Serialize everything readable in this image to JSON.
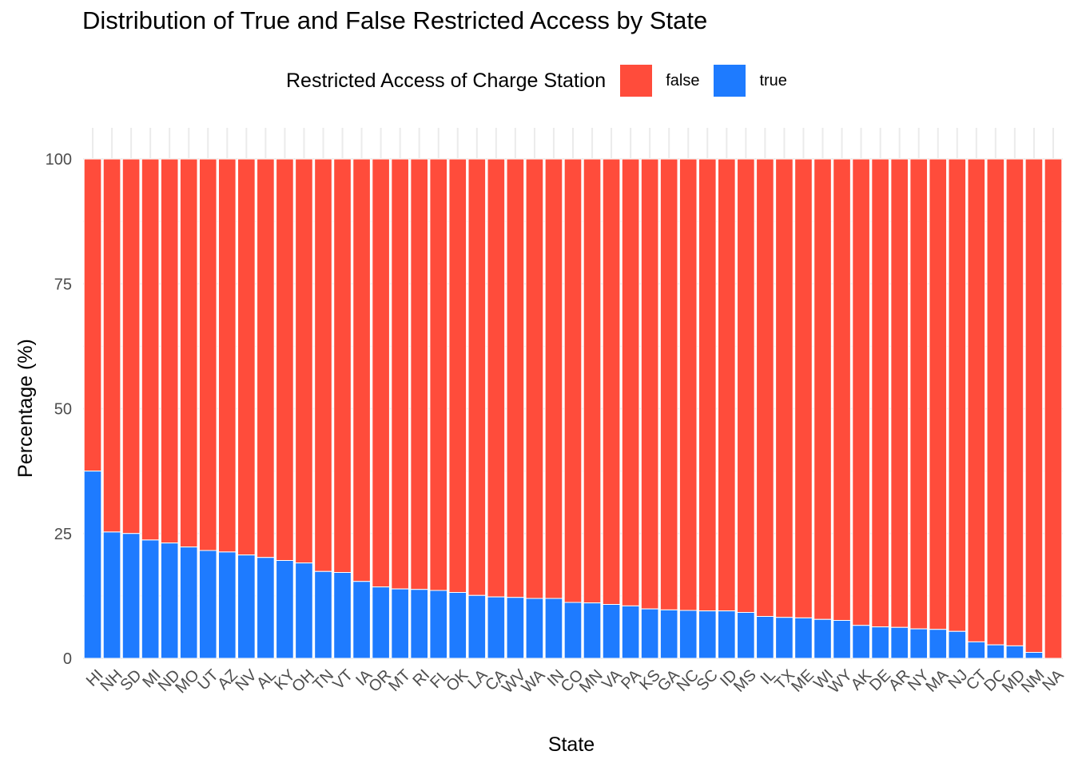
{
  "chart_data": {
    "type": "bar",
    "stacked": true,
    "title": "Distribution of True and False Restricted Access by State",
    "xlabel": "State",
    "ylabel": "Percentage (%)",
    "ylim": [
      0,
      100
    ],
    "yticks": [
      0,
      25,
      50,
      75,
      100
    ],
    "grid": true,
    "legend": {
      "title": "Restricted Access of Charge Station",
      "position": "top",
      "entries": [
        {
          "label": "false",
          "color": "#FF4C3B"
        },
        {
          "label": "true",
          "color": "#1E7BFF"
        }
      ]
    },
    "categories": [
      "HI",
      "NH",
      "SD",
      "MI",
      "ND",
      "MO",
      "UT",
      "AZ",
      "NV",
      "AL",
      "KY",
      "OH",
      "TN",
      "VT",
      "IA",
      "OR",
      "MT",
      "RI",
      "FL",
      "OK",
      "LA",
      "CA",
      "WV",
      "WA",
      "IN",
      "CO",
      "MN",
      "VA",
      "PA",
      "KS",
      "GA",
      "NC",
      "SC",
      "ID",
      "MS",
      "IL",
      "TX",
      "ME",
      "WI",
      "WY",
      "AK",
      "DE",
      "AR",
      "NY",
      "MA",
      "NJ",
      "CT",
      "DC",
      "MD",
      "NM",
      "NA"
    ],
    "series": [
      {
        "name": "true",
        "color": "#1E7BFF",
        "values": [
          37.5,
          25.3,
          25.0,
          23.7,
          23.1,
          22.3,
          21.6,
          21.3,
          20.7,
          20.2,
          19.6,
          19.1,
          17.4,
          17.2,
          15.4,
          14.3,
          13.9,
          13.8,
          13.6,
          13.2,
          12.6,
          12.3,
          12.2,
          12.0,
          12.0,
          11.2,
          11.1,
          10.8,
          10.5,
          9.9,
          9.7,
          9.6,
          9.5,
          9.5,
          9.2,
          8.4,
          8.2,
          8.1,
          7.8,
          7.6,
          6.6,
          6.3,
          6.2,
          5.9,
          5.8,
          5.4,
          3.3,
          2.7,
          2.5,
          1.2,
          0.0
        ]
      },
      {
        "name": "false",
        "color": "#FF4C3B",
        "values": [
          62.5,
          74.7,
          75.0,
          76.3,
          76.9,
          77.7,
          78.4,
          78.7,
          79.3,
          79.8,
          80.4,
          80.9,
          82.6,
          82.8,
          84.6,
          85.7,
          86.1,
          86.2,
          86.4,
          86.8,
          87.4,
          87.7,
          87.8,
          88.0,
          88.0,
          88.8,
          88.9,
          89.2,
          89.5,
          90.1,
          90.3,
          90.4,
          90.5,
          90.5,
          90.8,
          91.6,
          91.8,
          91.9,
          92.2,
          92.4,
          93.4,
          93.7,
          93.8,
          94.1,
          94.2,
          94.6,
          96.7,
          97.3,
          97.5,
          98.8,
          100.0
        ]
      }
    ]
  }
}
